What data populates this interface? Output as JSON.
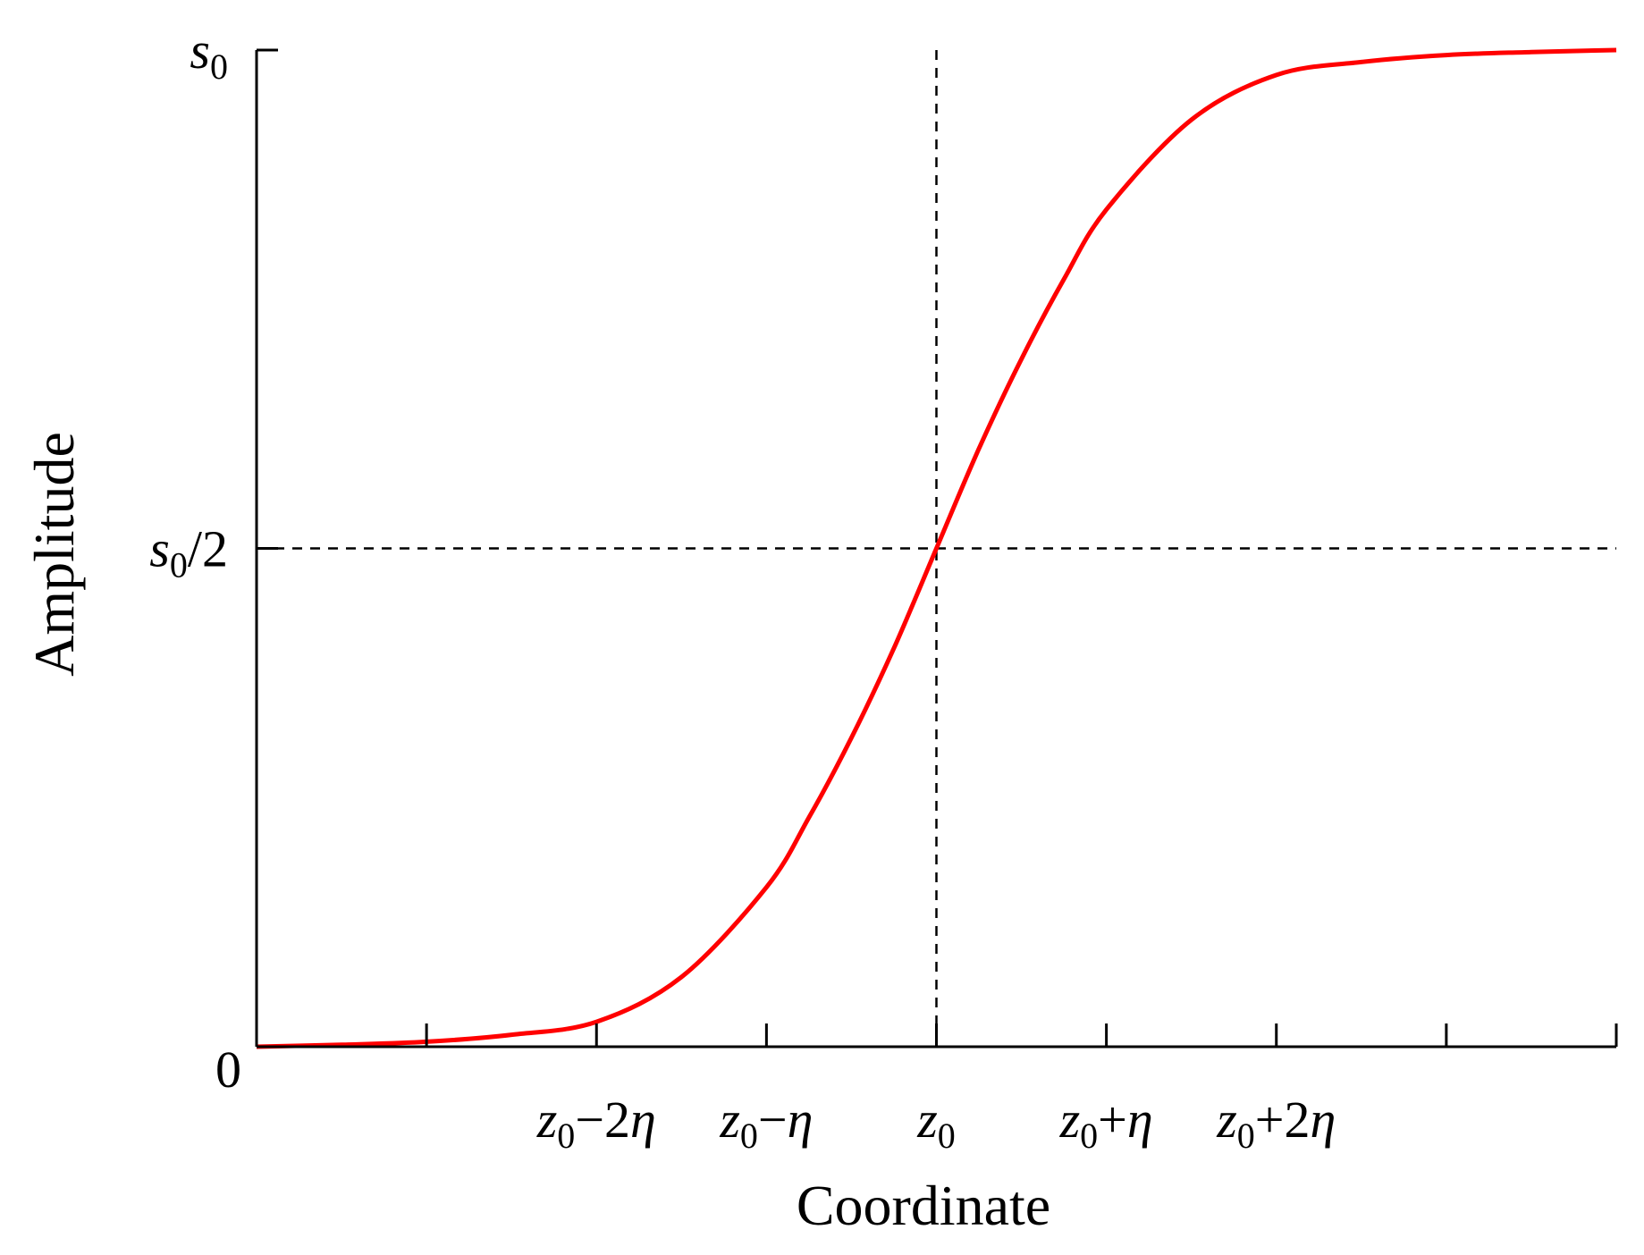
{
  "chart_data": {
    "type": "line",
    "xlabel": "Coordinate",
    "ylabel": "Amplitude",
    "x_ticks": [
      {
        "x": -3,
        "label": ""
      },
      {
        "x": -2,
        "label": "z0−2η"
      },
      {
        "x": -1,
        "label": "z0−η"
      },
      {
        "x": 0,
        "label": "z0"
      },
      {
        "x": 1,
        "label": "z0+η"
      },
      {
        "x": 2,
        "label": "z0+2η"
      },
      {
        "x": 3,
        "label": ""
      }
    ],
    "y_ticks": [
      {
        "y": 0,
        "label": "0"
      },
      {
        "y": 0.5,
        "label": "s0/2"
      },
      {
        "y": 1,
        "label": "s0"
      }
    ],
    "xlim": [
      -4,
      4
    ],
    "ylim": [
      0,
      1
    ],
    "grid": false,
    "reference_lines": [
      {
        "orientation": "vertical",
        "x": 0,
        "style": "dashed"
      },
      {
        "orientation": "horizontal",
        "y": 0.5,
        "style": "dashed"
      }
    ],
    "series": [
      {
        "function": "s0 / (1 + exp(-(z - z0)/eta))",
        "color": "#ff0000",
        "x": [
          -4,
          -3.5,
          -3,
          -2.5,
          -2,
          -1.5,
          -1,
          -0.75,
          -0.5,
          -0.25,
          0,
          0.25,
          0.5,
          0.75,
          1,
          1.5,
          2,
          2.5,
          3,
          3.5,
          4
        ],
        "y": [
          0.0,
          0.002,
          0.005,
          0.012,
          0.025,
          0.07,
          0.16,
          0.23,
          0.31,
          0.4,
          0.5,
          0.6,
          0.69,
          0.77,
          0.84,
          0.93,
          0.975,
          0.988,
          0.995,
          0.998,
          1.0
        ]
      }
    ]
  }
}
